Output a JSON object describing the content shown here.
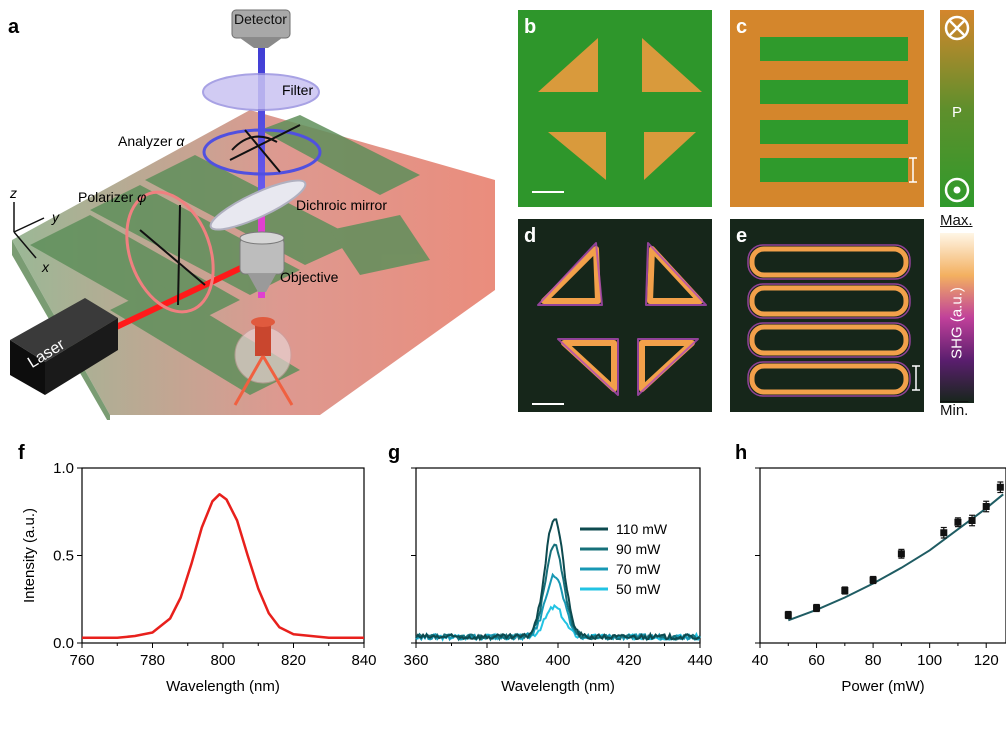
{
  "panels": {
    "a": {
      "label": "a",
      "detector": "Detector",
      "filter": "Filter",
      "analyzer": "Analyzer",
      "analyzer_symbol": "α",
      "polarizer": "Polarizer",
      "polarizer_symbol": "φ",
      "dichroic": "Dichroic mirror",
      "objective": "Objective",
      "laser": "Laser",
      "axis_z": "z",
      "axis_y": "y",
      "axis_x": "x"
    },
    "b": {
      "label": "b"
    },
    "c": {
      "label": "c"
    },
    "d": {
      "label": "d"
    },
    "e": {
      "label": "e"
    },
    "pol_bar": {
      "label": "P"
    },
    "shg_bar": {
      "max": "Max.",
      "min": "Min.",
      "label": "SHG (a.u.)"
    },
    "f": {
      "label": "f"
    },
    "g": {
      "label": "g"
    },
    "h": {
      "label": "h"
    }
  },
  "colors": {
    "topo_green": "#2f9a2c",
    "topo_orange": "#d98a2a",
    "f_line": "#e8201c",
    "h_fit": "#1f5c63",
    "h_points": "#111111"
  },
  "chart_data": [
    {
      "id": "f",
      "type": "line",
      "xlabel": "Wavelength (nm)",
      "ylabel": "Intensity (a.u.)",
      "xlim": [
        760,
        840
      ],
      "ylim": [
        0,
        1.0
      ],
      "xticks": [
        760,
        780,
        800,
        820,
        840
      ],
      "yticks": [
        0.0,
        0.5,
        1.0
      ],
      "ytick_labels": [
        "0.0",
        "0.5",
        "1.0"
      ],
      "series": [
        {
          "x": [
            760,
            770,
            775,
            780,
            785,
            788,
            791,
            794,
            797,
            799,
            801,
            804,
            807,
            810,
            813,
            816,
            820,
            825,
            830,
            835,
            840
          ],
          "y": [
            0.03,
            0.03,
            0.04,
            0.06,
            0.14,
            0.26,
            0.45,
            0.66,
            0.81,
            0.85,
            0.82,
            0.7,
            0.5,
            0.31,
            0.17,
            0.09,
            0.05,
            0.04,
            0.03,
            0.03,
            0.03
          ]
        }
      ]
    },
    {
      "id": "g",
      "type": "line",
      "xlabel": "Wavelength (nm)",
      "xlim": [
        360,
        440
      ],
      "ylim": [
        0,
        1.0
      ],
      "xticks": [
        360,
        380,
        400,
        420,
        440
      ],
      "legend": "right",
      "series": [
        {
          "name": "110 mW",
          "color": "#0d4a4f",
          "peak": 0.68
        },
        {
          "name": "90 mW",
          "color": "#16707a",
          "peak": 0.52
        },
        {
          "name": "70 mW",
          "color": "#1898b4",
          "peak": 0.35
        },
        {
          "name": "50 mW",
          "color": "#22c3e3",
          "peak": 0.17
        }
      ],
      "peak_x": 399,
      "width": 2.6,
      "baseline": 0.035
    },
    {
      "id": "h",
      "type": "scatter",
      "xlabel": "Power (mW)",
      "xlim": [
        40,
        127
      ],
      "ylim": [
        0,
        1.0
      ],
      "xticks": [
        40,
        60,
        80,
        100,
        120
      ],
      "series": [
        {
          "name": "data",
          "x": [
            50,
            60,
            70,
            80,
            90,
            105,
            110,
            115,
            120,
            125
          ],
          "y": [
            0.16,
            0.2,
            0.3,
            0.36,
            0.51,
            0.63,
            0.69,
            0.7,
            0.78,
            0.89
          ],
          "err": [
            0.02,
            0.02,
            0.02,
            0.02,
            0.025,
            0.03,
            0.025,
            0.03,
            0.03,
            0.03
          ]
        },
        {
          "name": "fit",
          "type": "quadratic",
          "x": [
            50,
            60,
            70,
            80,
            90,
            100,
            110,
            120,
            126
          ],
          "y": [
            0.13,
            0.19,
            0.26,
            0.34,
            0.43,
            0.53,
            0.65,
            0.77,
            0.85
          ]
        }
      ]
    }
  ]
}
